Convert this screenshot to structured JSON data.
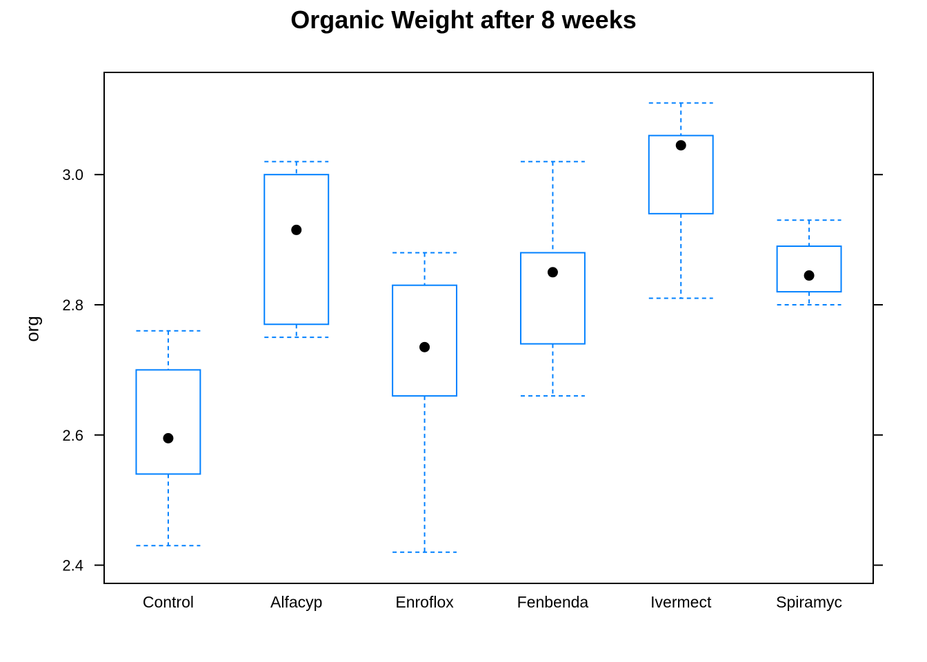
{
  "chart_data": {
    "type": "box",
    "title": "Organic Weight after 8 weeks",
    "xlabel": "",
    "ylabel": "org",
    "ylim": [
      2.372,
      3.157
    ],
    "yticks": [
      2.4,
      2.6,
      2.8,
      3.0
    ],
    "ytick_labels": [
      "2.4",
      "2.6",
      "2.8",
      "3.0"
    ],
    "categories": [
      "Control",
      "Alfacyp",
      "Enroflox",
      "Fenbenda",
      "Ivermect",
      "Spiramyc"
    ],
    "boxes": [
      {
        "category": "Control",
        "whisker_low": 2.43,
        "q1": 2.54,
        "median": 2.595,
        "q3": 2.7,
        "whisker_high": 2.76
      },
      {
        "category": "Alfacyp",
        "whisker_low": 2.75,
        "q1": 2.77,
        "median": 2.915,
        "q3": 3.0,
        "whisker_high": 3.02
      },
      {
        "category": "Enroflox",
        "whisker_low": 2.42,
        "q1": 2.66,
        "median": 2.735,
        "q3": 2.83,
        "whisker_high": 2.88
      },
      {
        "category": "Fenbenda",
        "whisker_low": 2.66,
        "q1": 2.74,
        "median": 2.85,
        "q3": 2.88,
        "whisker_high": 3.02
      },
      {
        "category": "Ivermect",
        "whisker_low": 2.81,
        "q1": 2.94,
        "median": 3.045,
        "q3": 3.06,
        "whisker_high": 3.11
      },
      {
        "category": "Spiramyc",
        "whisker_low": 2.8,
        "q1": 2.82,
        "median": 2.845,
        "q3": 2.89,
        "whisker_high": 2.93
      }
    ],
    "box_color": "#0080ff",
    "median_marker_color": "#000000",
    "grid": false,
    "legend": "none"
  }
}
